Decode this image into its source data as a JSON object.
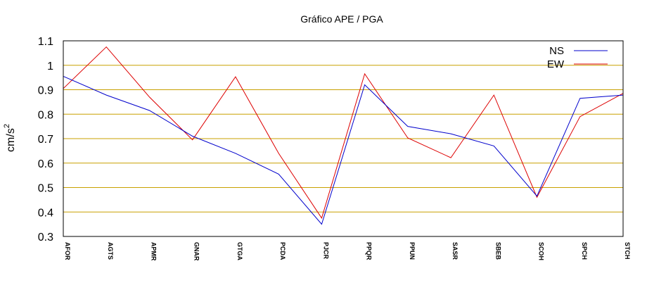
{
  "chart_data": {
    "type": "line",
    "title": "Gráfico  APE / PGA",
    "xlabel": "",
    "ylabel": "cm/s",
    "ylabel_superscript": "2",
    "categories": [
      "AFOR",
      "AGTS",
      "APMR",
      "GNAR",
      "GTGA",
      "PCDA",
      "PJCR",
      "PPQR",
      "PPUN",
      "SASR",
      "SBEB",
      "SCOH",
      "SPCH",
      "STCH"
    ],
    "series": [
      {
        "name": "NS",
        "color": "#0000cc",
        "values": [
          0.955,
          0.878,
          0.815,
          0.71,
          0.64,
          0.555,
          0.35,
          0.92,
          0.75,
          0.72,
          0.67,
          0.465,
          0.865,
          0.878
        ]
      },
      {
        "name": "EW",
        "color": "#dd0000",
        "values": [
          0.905,
          1.075,
          0.87,
          0.695,
          0.953,
          0.64,
          0.375,
          0.965,
          0.703,
          0.622,
          0.878,
          0.46,
          0.79,
          0.885
        ]
      }
    ],
    "ylim": [
      0.3,
      1.1
    ],
    "yticks": [
      0.3,
      0.4,
      0.5,
      0.6,
      0.7,
      0.8,
      0.9,
      1,
      1.1
    ],
    "ytick_labels": [
      "0.3",
      "0.4",
      "0.5",
      "0.6",
      "0.7",
      "0.8",
      "0.9",
      "1",
      "1.1"
    ],
    "grid": true,
    "grid_color": "#c8a000",
    "legend_position": "top-right"
  }
}
